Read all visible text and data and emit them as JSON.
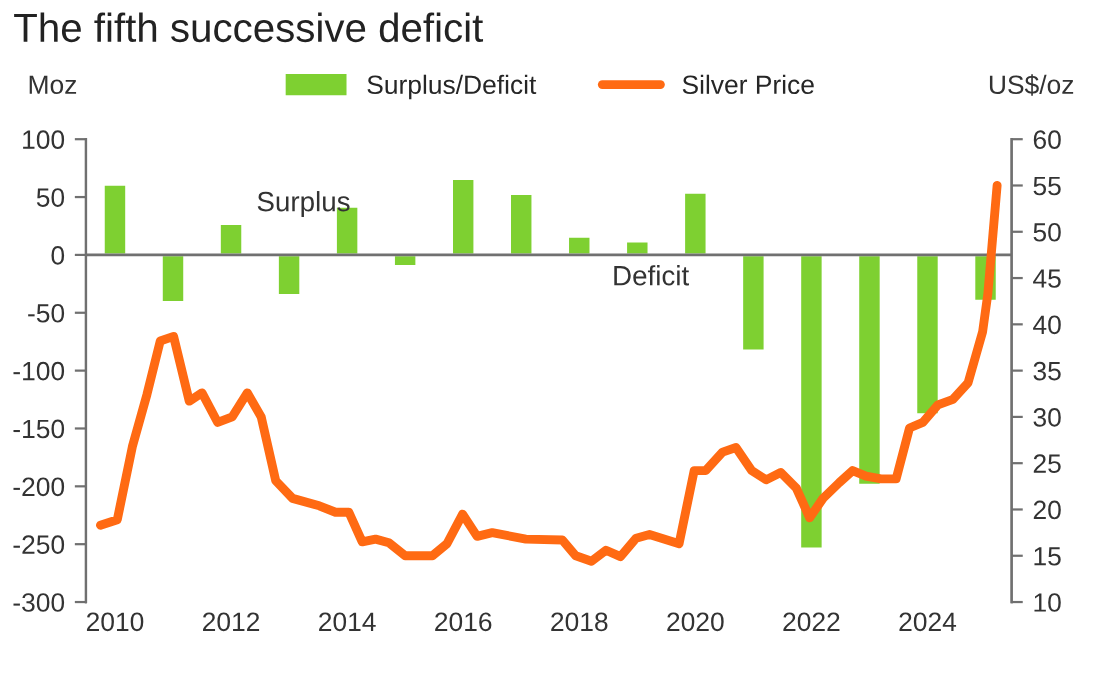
{
  "chart_data": {
    "type": "bar",
    "title": "The fifth successive deficit",
    "ylabel": "Moz",
    "y2label": "US$/oz",
    "x": [
      2010,
      2011,
      2012,
      2013,
      2014,
      2015,
      2016,
      2017,
      2018,
      2019,
      2020,
      2021,
      2022,
      2023,
      2024,
      2025
    ],
    "series": [
      {
        "name": "Surplus/Deficit",
        "color": "#7ed031",
        "values": [
          61,
          -41,
          27,
          -35,
          42,
          -10,
          66,
          53,
          16,
          12,
          54,
          -83,
          -254,
          -199,
          -138,
          -40
        ]
      },
      {
        "name": "Silver Price",
        "type": "line",
        "axis": "y2",
        "color": "#ff6a13",
        "x": [
          2009.75,
          2010.04,
          2010.3,
          2010.55,
          2010.78,
          2011.01,
          2011.28,
          2011.5,
          2011.77,
          2012.02,
          2012.28,
          2012.52,
          2012.77,
          2013.06,
          2013.52,
          2013.8,
          2014.03,
          2014.26,
          2014.49,
          2014.72,
          2015.0,
          2015.47,
          2015.72,
          2015.99,
          2016.24,
          2016.5,
          2017.08,
          2017.71,
          2017.94,
          2018.21,
          2018.46,
          2018.71,
          2018.98,
          2019.21,
          2019.72,
          2019.98,
          2020.18,
          2020.47,
          2020.7,
          2020.97,
          2021.22,
          2021.47,
          2021.74,
          2021.97,
          2022.2,
          2022.48,
          2022.71,
          2022.94,
          2023.2,
          2023.46,
          2023.69,
          2023.92,
          2024.18,
          2024.44,
          2024.7,
          2024.95,
          2025.04,
          2025.2
        ],
        "values": [
          18.3,
          18.9,
          26.8,
          32.4,
          38.2,
          38.7,
          31.7,
          32.6,
          29.4,
          30,
          32.6,
          30,
          23.1,
          21.2,
          20.4,
          19.7,
          19.7,
          16.5,
          16.8,
          16.4,
          15,
          15,
          16.3,
          19.5,
          17.1,
          17.5,
          16.8,
          16.7,
          15,
          14.4,
          15.6,
          14.9,
          16.9,
          17.3,
          16.3,
          24.2,
          24.2,
          26.2,
          26.7,
          24.2,
          23.2,
          24,
          22.3,
          19.1,
          21.2,
          22.9,
          24.2,
          23.6,
          23.3,
          23.3,
          28.8,
          29.4,
          31.3,
          31.9,
          33.7,
          39.2,
          43.3,
          55
        ]
      }
    ],
    "xlim": [
      2009.5,
      2025.45
    ],
    "xticks": [
      2010,
      2012,
      2014,
      2016,
      2018,
      2020,
      2022,
      2024
    ],
    "ylim": [
      -300,
      100
    ],
    "yticks": [
      -300,
      -250,
      -200,
      -150,
      -100,
      -50,
      0,
      50,
      100
    ],
    "y2lim": [
      10,
      60
    ],
    "y2ticks": [
      10,
      15,
      20,
      25,
      30,
      35,
      40,
      45,
      50,
      55,
      60
    ],
    "ref_lines": [
      {
        "axis": "y",
        "value": 0,
        "color": "#707070"
      }
    ],
    "annotations": [
      "Surplus",
      "Deficit"
    ],
    "grid": false,
    "legend": "top"
  }
}
